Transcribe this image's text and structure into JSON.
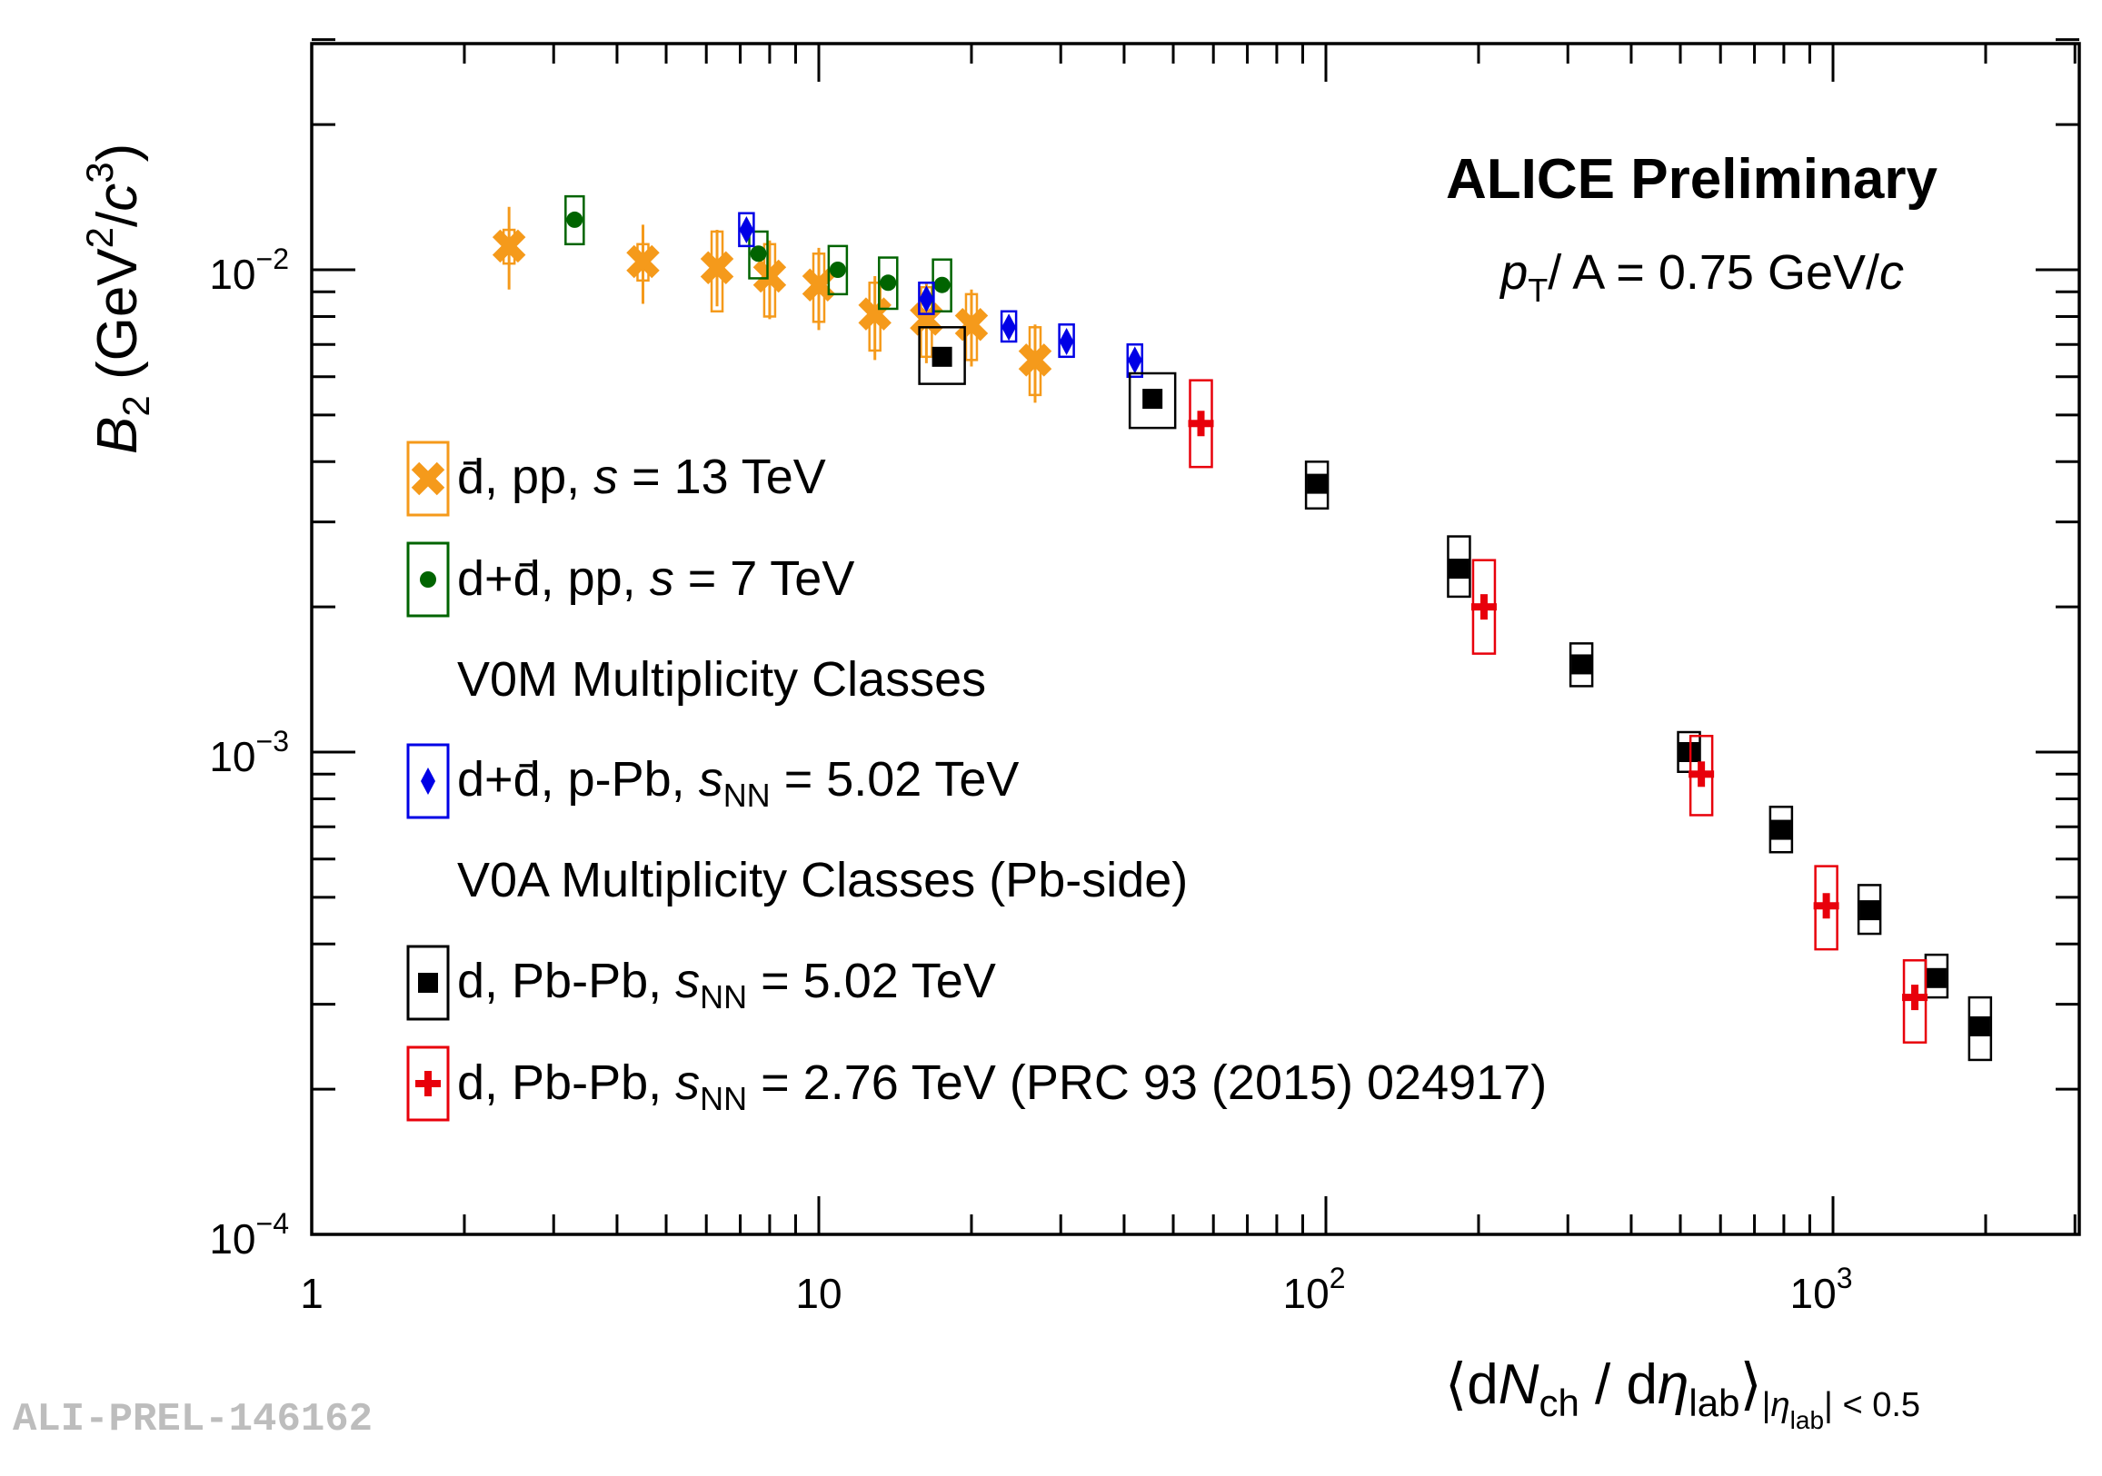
{
  "chart_data": {
    "type": "scatter",
    "x_scale": "log",
    "y_scale": "log",
    "xlim": [
      1,
      3500
    ],
    "ylim": [
      0.0001,
      0.03
    ],
    "x_tick_labels": [
      {
        "value": 1,
        "label": "1",
        "exp": ""
      },
      {
        "value": 10,
        "label": "10",
        "exp": ""
      },
      {
        "value": 100,
        "label": "10",
        "exp": "2"
      },
      {
        "value": 1000,
        "label": "10",
        "exp": "3"
      }
    ],
    "y_tick_labels": [
      {
        "value": 0.0001,
        "label": "10",
        "exp": "−4"
      },
      {
        "value": 0.001,
        "label": "10",
        "exp": "−3"
      },
      {
        "value": 0.01,
        "label": "10",
        "exp": "−2"
      }
    ],
    "ylabel": {
      "main": "B",
      "sub": "2",
      "unit_open": " (GeV",
      "sup1": "2",
      "slash": "/",
      "c": "c",
      "sup2": "3",
      "unit_close": ")"
    },
    "xlabel": {
      "open": "⟨d",
      "N": "N",
      "sub_ch": "ch",
      "mid": " / d",
      "eta": "η",
      "sub_lab": "lab",
      "close": "⟩",
      "range_open": "|",
      "range_eta": "η",
      "range_lab": "lab",
      "range_close": "| < 0.5"
    },
    "title": "ALICE Preliminary",
    "subtitle": {
      "p": "p",
      "sub": "T",
      "rest": "/ A = 0.75 GeV/",
      "c": "c"
    },
    "legend": {
      "position": "left-center",
      "headers": [
        "V0M Multiplicity Classes",
        "V0A Multiplicity Classes (Pb-side)"
      ],
      "entries": [
        {
          "a": "d̄, pp, ",
          "sqrt": "s",
          "sub": "",
          "b": " = 13 TeV"
        },
        {
          "a": "d+d̄, pp, ",
          "sqrt": "s",
          "sub": "",
          "b": " = 7 TeV"
        },
        {
          "a": "d+d̄, p-Pb, ",
          "sqrt": "s",
          "sub": "NN",
          "b": " = 5.02 TeV"
        },
        {
          "a": "d, Pb-Pb, ",
          "sqrt": "s",
          "sub": "NN",
          "b": " = 5.02 TeV"
        },
        {
          "a": "d, Pb-Pb, ",
          "sqrt": "s",
          "sub": "NN",
          "b": " = 2.76 TeV (PRC 93 (2015) 024917)"
        }
      ]
    },
    "series": [
      {
        "name": "d̄, pp, √s = 13 TeV",
        "color": "#f59a1b",
        "marker": "x",
        "points": [
          {
            "x": 2.45,
            "y": 0.0112,
            "ylo": 0.0091,
            "yhi": 0.0135,
            "slo": 0.0103,
            "shi": 0.0121
          },
          {
            "x": 4.5,
            "y": 0.0104,
            "ylo": 0.0085,
            "yhi": 0.0124,
            "slo": 0.0095,
            "shi": 0.0113
          },
          {
            "x": 6.3,
            "y": 0.0101,
            "ylo": 0.0084,
            "yhi": 0.0121,
            "slo": 0.0082,
            "shi": 0.012
          },
          {
            "x": 8.0,
            "y": 0.0097,
            "ylo": 0.0079,
            "yhi": 0.0115,
            "slo": 0.008,
            "shi": 0.0113
          },
          {
            "x": 10.0,
            "y": 0.0093,
            "ylo": 0.0075,
            "yhi": 0.0111,
            "slo": 0.0078,
            "shi": 0.0108
          },
          {
            "x": 12.9,
            "y": 0.0081,
            "ylo": 0.0065,
            "yhi": 0.0097,
            "slo": 0.0068,
            "shi": 0.0094
          },
          {
            "x": 16.3,
            "y": 0.0079,
            "ylo": 0.0064,
            "yhi": 0.0094,
            "slo": 0.0066,
            "shi": 0.0092
          },
          {
            "x": 20.0,
            "y": 0.0077,
            "ylo": 0.0063,
            "yhi": 0.0091,
            "slo": 0.0065,
            "shi": 0.0089
          },
          {
            "x": 26.7,
            "y": 0.0065,
            "ylo": 0.0053,
            "yhi": 0.0077,
            "slo": 0.0055,
            "shi": 0.0076
          }
        ]
      },
      {
        "name": "d+d̄, pp, √s = 7 TeV",
        "color": "#006400",
        "marker": "circle",
        "points": [
          {
            "x": 3.3,
            "y": 0.0127,
            "slo": 0.0113,
            "shi": 0.0142
          },
          {
            "x": 7.6,
            "y": 0.0108,
            "slo": 0.0096,
            "shi": 0.012
          },
          {
            "x": 10.9,
            "y": 0.01,
            "slo": 0.0089,
            "shi": 0.0112
          },
          {
            "x": 13.7,
            "y": 0.0094,
            "slo": 0.0083,
            "shi": 0.0106
          },
          {
            "x": 17.5,
            "y": 0.0093,
            "slo": 0.0082,
            "shi": 0.0105
          }
        ]
      },
      {
        "name": "d+d̄, p-Pb, √sNN = 5.02 TeV",
        "color": "#0000e6",
        "marker": "diamond",
        "points": [
          {
            "x": 7.2,
            "y": 0.0121,
            "slo": 0.0112,
            "shi": 0.0131
          },
          {
            "x": 16.3,
            "y": 0.0087,
            "slo": 0.0081,
            "shi": 0.0094
          },
          {
            "x": 23.7,
            "y": 0.0076,
            "slo": 0.0071,
            "shi": 0.0082
          },
          {
            "x": 30.8,
            "y": 0.0071,
            "slo": 0.0066,
            "shi": 0.0077
          },
          {
            "x": 42.0,
            "y": 0.0065,
            "slo": 0.006,
            "shi": 0.007
          }
        ]
      },
      {
        "name": "d, Pb-Pb, √sNN = 5.02 TeV",
        "color": "#000000",
        "marker": "square",
        "points": [
          {
            "x": 17.5,
            "y": 0.0066,
            "slo": 0.0058,
            "shi": 0.0076,
            "wide": 1
          },
          {
            "x": 45.5,
            "y": 0.0054,
            "slo": 0.0047,
            "shi": 0.0061,
            "wide": 1
          },
          {
            "x": 96.0,
            "y": 0.0036,
            "slo": 0.0032,
            "shi": 0.004
          },
          {
            "x": 183.0,
            "y": 0.0024,
            "slo": 0.0021,
            "shi": 0.0028
          },
          {
            "x": 319.0,
            "y": 0.00152,
            "slo": 0.00137,
            "shi": 0.00168
          },
          {
            "x": 520.0,
            "y": 0.001,
            "slo": 0.00091,
            "shi": 0.0011
          },
          {
            "x": 790.0,
            "y": 0.00069,
            "slo": 0.00062,
            "shi": 0.00077
          },
          {
            "x": 1180.0,
            "y": 0.00047,
            "slo": 0.00042,
            "shi": 0.00053
          },
          {
            "x": 1600.0,
            "y": 0.00034,
            "slo": 0.00031,
            "shi": 0.00038
          },
          {
            "x": 1950.0,
            "y": 0.00027,
            "slo": 0.00023,
            "shi": 0.00031
          }
        ]
      },
      {
        "name": "d, Pb-Pb, √sNN = 2.76 TeV (PRC 93 (2015) 024917)",
        "color": "#e8000b",
        "marker": "cross",
        "points": [
          {
            "x": 56.7,
            "y": 0.0048,
            "slo": 0.0039,
            "shi": 0.0059
          },
          {
            "x": 205.0,
            "y": 0.002,
            "slo": 0.0016,
            "shi": 0.0025
          },
          {
            "x": 550.0,
            "y": 0.0009,
            "slo": 0.00074,
            "shi": 0.00108
          },
          {
            "x": 970.0,
            "y": 0.00048,
            "slo": 0.00039,
            "shi": 0.00058
          },
          {
            "x": 1450.0,
            "y": 0.00031,
            "slo": 0.00025,
            "shi": 0.00037
          }
        ]
      }
    ]
  },
  "watermark": "ALI-PREL-146162"
}
